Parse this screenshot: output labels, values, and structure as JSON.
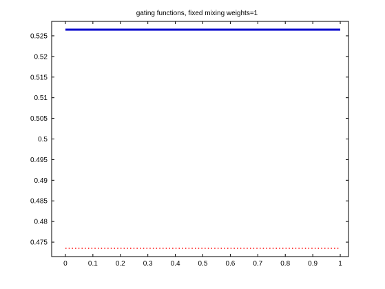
{
  "chart_data": {
    "type": "line",
    "title": "gating functions, fixed mixing weights=1",
    "xlabel": "",
    "ylabel": "",
    "xlim": [
      -0.05,
      1.03
    ],
    "ylim": [
      0.4715,
      0.5285
    ],
    "x_ticks": [
      0,
      0.1,
      0.2,
      0.3,
      0.4,
      0.5,
      0.6,
      0.7,
      0.8,
      0.9,
      1
    ],
    "x_tick_labels": [
      "0",
      "0.1",
      "0.2",
      "0.3",
      "0.4",
      "0.5",
      "0.6",
      "0.7",
      "0.8",
      "0.9",
      "1"
    ],
    "y_ticks": [
      0.475,
      0.48,
      0.485,
      0.49,
      0.495,
      0.5,
      0.505,
      0.51,
      0.515,
      0.52,
      0.525
    ],
    "y_tick_labels": [
      "0.475",
      "0.48",
      "0.485",
      "0.49",
      "0.495",
      "0.5",
      "0.505",
      "0.51",
      "0.515",
      "0.52",
      "0.525"
    ],
    "grid": false,
    "legend": "none",
    "series": [
      {
        "x": [
          0,
          1
        ],
        "y": [
          0.5265,
          0.5265
        ],
        "color": "#0000cc",
        "style": "solid"
      },
      {
        "x": [
          0,
          1
        ],
        "y": [
          0.4735,
          0.4735
        ],
        "color": "#ff0000",
        "style": "dotted"
      }
    ]
  }
}
